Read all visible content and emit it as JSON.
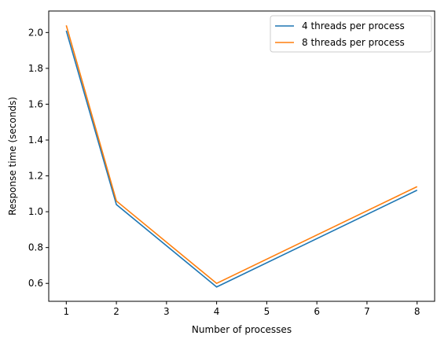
{
  "chart_data": {
    "type": "line",
    "title": "",
    "xlabel": "Number of processes",
    "ylabel": "Response time (seconds)",
    "x": [
      1,
      2,
      4,
      8
    ],
    "xlim": [
      0.65,
      8.35
    ],
    "ylim": [
      0.5,
      2.12
    ],
    "xticks": [
      1,
      2,
      3,
      4,
      5,
      6,
      7,
      8
    ],
    "yticks": [
      0.6,
      0.8,
      1.0,
      1.2,
      1.4,
      1.6,
      1.8,
      2.0
    ],
    "ytick_labels": [
      "0.6",
      "0.8",
      "1.0",
      "1.2",
      "1.4",
      "1.6",
      "1.8",
      "2.0"
    ],
    "grid": false,
    "legend_position": "top-right",
    "series": [
      {
        "name": "4 threads per process",
        "color": "#1f77b4",
        "values": [
          2.01,
          1.04,
          0.58,
          1.12
        ]
      },
      {
        "name": "8 threads per process",
        "color": "#ff7f0e",
        "values": [
          2.04,
          1.06,
          0.6,
          1.14
        ]
      }
    ]
  }
}
